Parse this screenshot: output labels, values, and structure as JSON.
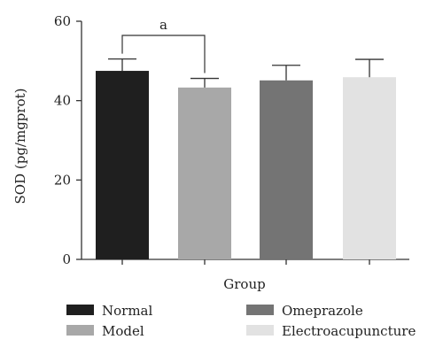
{
  "chart_data": {
    "type": "bar",
    "categories": [
      "Normal",
      "Model",
      "Omeprazole",
      "Electroacupuncture"
    ],
    "values": [
      47.5,
      43.3,
      45.1,
      45.9
    ],
    "errors": [
      3.0,
      2.3,
      3.8,
      4.5
    ],
    "colors": [
      "#1f1f1f",
      "#a8a8a8",
      "#747474",
      "#e2e2e2"
    ],
    "xlabel": "Group",
    "ylabel": "SOD (pg/mgprot)",
    "ylim": [
      0,
      60
    ],
    "yticks": [
      0,
      20,
      40,
      60
    ],
    "grid": false,
    "legend_position": "bottom",
    "annotations": [
      {
        "text": "a",
        "from": "Normal",
        "to": "Model"
      }
    ]
  }
}
